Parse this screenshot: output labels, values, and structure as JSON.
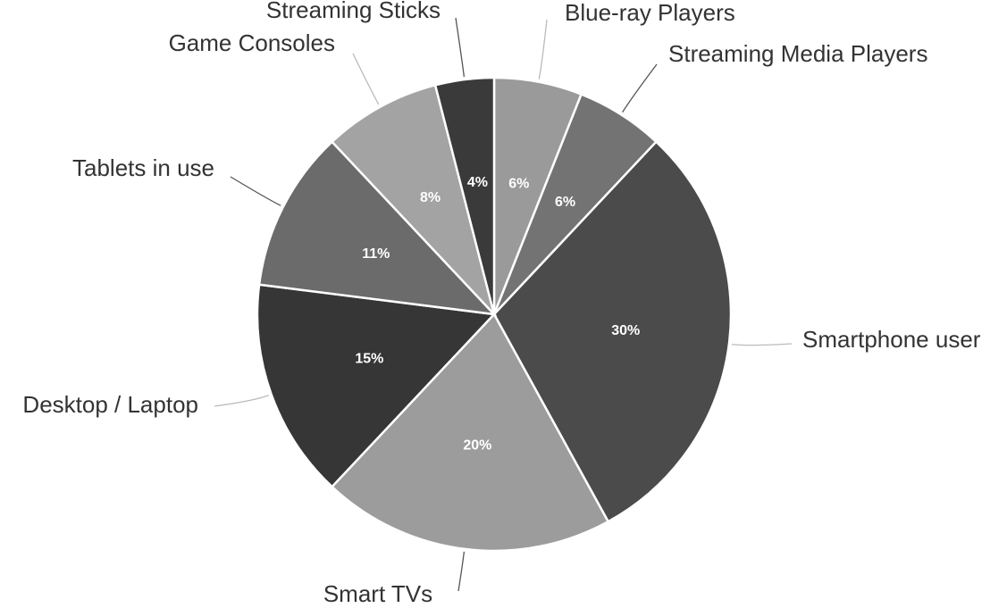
{
  "chart_data": {
    "type": "pie",
    "categories": [
      "Blue-ray Players",
      "Streaming Media Players",
      "Smartphone user",
      "Smart TVs",
      "Desktop / Laptop",
      "Tablets in use",
      "Game Consoles",
      "Streaming Sticks"
    ],
    "values": [
      6,
      6,
      30,
      20,
      15,
      11,
      8,
      4
    ],
    "value_labels": [
      "6%",
      "6%",
      "30%",
      "20%",
      "15%",
      "11%",
      "8%",
      "4%"
    ],
    "colors": [
      "#9a9a9a",
      "#737373",
      "#4b4b4b",
      "#9c9c9c",
      "#363636",
      "#6b6b6b",
      "#a3a3a3",
      "#3a3a3a"
    ]
  }
}
